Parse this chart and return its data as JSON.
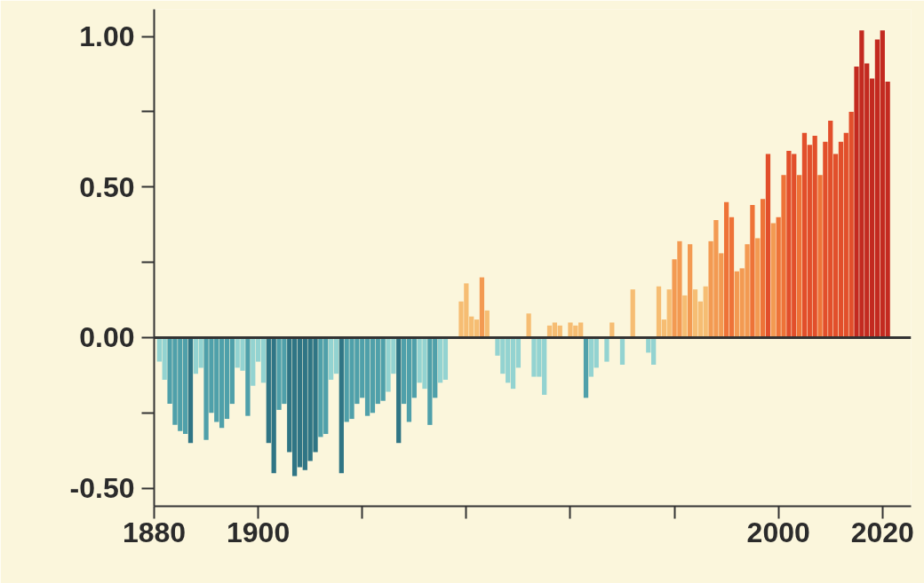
{
  "chart_data": {
    "type": "bar",
    "x": [
      1881,
      1882,
      1883,
      1884,
      1885,
      1886,
      1887,
      1888,
      1889,
      1890,
      1891,
      1892,
      1893,
      1894,
      1895,
      1896,
      1897,
      1898,
      1899,
      1900,
      1901,
      1902,
      1903,
      1904,
      1905,
      1906,
      1907,
      1908,
      1909,
      1910,
      1911,
      1912,
      1913,
      1914,
      1915,
      1916,
      1917,
      1918,
      1919,
      1920,
      1921,
      1922,
      1923,
      1924,
      1925,
      1926,
      1927,
      1928,
      1929,
      1930,
      1931,
      1932,
      1933,
      1934,
      1935,
      1936,
      1937,
      1938,
      1939,
      1940,
      1941,
      1942,
      1943,
      1944,
      1945,
      1946,
      1947,
      1948,
      1949,
      1950,
      1951,
      1952,
      1953,
      1954,
      1955,
      1956,
      1957,
      1958,
      1959,
      1960,
      1961,
      1962,
      1963,
      1964,
      1965,
      1966,
      1967,
      1968,
      1969,
      1970,
      1971,
      1972,
      1973,
      1974,
      1975,
      1976,
      1977,
      1978,
      1979,
      1980,
      1981,
      1982,
      1983,
      1984,
      1985,
      1986,
      1987,
      1988,
      1989,
      1990,
      1991,
      1992,
      1993,
      1994,
      1995,
      1996,
      1997,
      1998,
      1999,
      2000,
      2001,
      2002,
      2003,
      2004,
      2005,
      2006,
      2007,
      2008,
      2009,
      2010,
      2011,
      2012,
      2013,
      2014,
      2015,
      2016,
      2017,
      2018,
      2019,
      2020,
      2021
    ],
    "values": [
      -0.08,
      -0.14,
      -0.22,
      -0.29,
      -0.31,
      -0.32,
      -0.35,
      -0.12,
      -0.1,
      -0.34,
      -0.25,
      -0.28,
      -0.3,
      -0.27,
      -0.22,
      -0.1,
      -0.11,
      -0.26,
      -0.16,
      -0.08,
      -0.15,
      -0.35,
      -0.45,
      -0.24,
      -0.22,
      -0.38,
      -0.46,
      -0.43,
      -0.44,
      -0.41,
      -0.38,
      -0.33,
      -0.32,
      -0.14,
      -0.12,
      -0.45,
      -0.28,
      -0.27,
      -0.22,
      -0.2,
      -0.26,
      -0.25,
      -0.22,
      -0.21,
      -0.18,
      -0.12,
      -0.35,
      -0.22,
      -0.28,
      -0.2,
      -0.15,
      -0.17,
      -0.29,
      -0.2,
      -0.15,
      -0.14,
      null,
      null,
      0.12,
      0.18,
      0.07,
      0.06,
      0.2,
      0.09,
      null,
      -0.06,
      -0.12,
      -0.15,
      -0.17,
      -0.1,
      null,
      0.08,
      -0.13,
      -0.13,
      -0.19,
      0.04,
      0.05,
      0.04,
      null,
      0.05,
      0.04,
      0.05,
      -0.2,
      -0.13,
      -0.1,
      null,
      -0.08,
      0.05,
      null,
      -0.09,
      null,
      0.16,
      null,
      null,
      -0.05,
      -0.09,
      0.17,
      0.06,
      0.16,
      0.26,
      0.32,
      0.14,
      0.31,
      0.16,
      0.12,
      0.17,
      0.32,
      0.39,
      0.28,
      0.45,
      0.4,
      0.22,
      0.23,
      0.31,
      0.44,
      0.33,
      0.46,
      0.61,
      0.38,
      0.4,
      0.54,
      0.62,
      0.61,
      0.54,
      0.68,
      0.64,
      0.67,
      0.54,
      0.65,
      0.72,
      0.61,
      0.65,
      0.68,
      0.75,
      0.9,
      1.02,
      0.91,
      0.86,
      0.99,
      1.02,
      0.85
    ],
    "colors": [
      "#93d3d1",
      "#93d3d1",
      "#4fa0aa",
      "#4fa0aa",
      "#4fa0aa",
      "#4fa0aa",
      "#2f7585",
      "#93d3d1",
      "#93d3d1",
      "#4fa0aa",
      "#4fa0aa",
      "#4fa0aa",
      "#4fa0aa",
      "#4fa0aa",
      "#4fa0aa",
      "#93d3d1",
      "#93d3d1",
      "#4fa0aa",
      "#93d3d1",
      "#93d3d1",
      "#93d3d1",
      "#2f7585",
      "#2f7585",
      "#4fa0aa",
      "#4fa0aa",
      "#2f7585",
      "#2f7585",
      "#2f7585",
      "#2f7585",
      "#2f7585",
      "#2f7585",
      "#4fa0aa",
      "#4fa0aa",
      "#93d3d1",
      "#93d3d1",
      "#2f7585",
      "#4fa0aa",
      "#4fa0aa",
      "#4fa0aa",
      "#4fa0aa",
      "#4fa0aa",
      "#4fa0aa",
      "#4fa0aa",
      "#4fa0aa",
      "#93d3d1",
      "#93d3d1",
      "#2f7585",
      "#4fa0aa",
      "#4fa0aa",
      "#4fa0aa",
      "#93d3d1",
      "#93d3d1",
      "#4fa0aa",
      "#4fa0aa",
      "#93d3d1",
      "#93d3d1",
      null,
      null,
      "#f6bd73",
      "#f6bd73",
      "#f6bd73",
      "#f6bd73",
      "#f39a52",
      "#f6bd73",
      null,
      "#93d3d1",
      "#93d3d1",
      "#93d3d1",
      "#93d3d1",
      "#93d3d1",
      null,
      "#f6bd73",
      "#93d3d1",
      "#93d3d1",
      "#93d3d1",
      "#f6bd73",
      "#f6bd73",
      "#f6bd73",
      null,
      "#f6bd73",
      "#f6bd73",
      "#f6bd73",
      "#4fa0aa",
      "#93d3d1",
      "#93d3d1",
      null,
      "#93d3d1",
      "#f6bd73",
      null,
      "#93d3d1",
      null,
      "#f6bd73",
      null,
      null,
      "#93d3d1",
      "#93d3d1",
      "#f6bd73",
      "#f6bd73",
      "#f6bd73",
      "#f39a52",
      "#f39a52",
      "#f6bd73",
      "#f39a52",
      "#f6bd73",
      "#f6bd73",
      "#f6bd73",
      "#f39a52",
      "#f39a52",
      "#f39a52",
      "#ee7338",
      "#ee7338",
      "#f39a52",
      "#f39a52",
      "#f39a52",
      "#ee7338",
      "#f39a52",
      "#ee7338",
      "#e24f2b",
      "#f39a52",
      "#ee7338",
      "#ee7338",
      "#e24f2b",
      "#e24f2b",
      "#ee7338",
      "#e24f2b",
      "#e24f2b",
      "#e24f2b",
      "#ee7338",
      "#e24f2b",
      "#e24f2b",
      "#e24f2b",
      "#e24f2b",
      "#e24f2b",
      "#e24f2b",
      "#c32a20",
      "#c32a20",
      "#c32a20",
      "#c32a20",
      "#c32a20",
      "#c32a20",
      "#c32a20"
    ],
    "xlim": [
      1880,
      2025.5
    ],
    "xticks": [
      1880,
      1900,
      {
        "value": 1920,
        "label": null
      },
      {
        "value": 1940,
        "label": null
      },
      {
        "value": 1960,
        "label": null
      },
      {
        "value": 1980,
        "label": null
      },
      2000,
      2020
    ],
    "ylim": [
      -0.56,
      1.09
    ],
    "yticks": [
      {
        "value": -0.5,
        "label": "-0.50"
      },
      {
        "value": -0.25,
        "label": null
      },
      {
        "value": 0,
        "label": "0.00"
      },
      {
        "value": 0.25,
        "label": null
      },
      {
        "value": 0.5,
        "label": "0.50"
      },
      {
        "value": 0.75,
        "label": null
      },
      {
        "value": 1,
        "label": "1.00"
      }
    ],
    "ref_lines": [
      {
        "axis": "y",
        "value": 0,
        "color": "#333333"
      }
    ],
    "grid": false
  }
}
